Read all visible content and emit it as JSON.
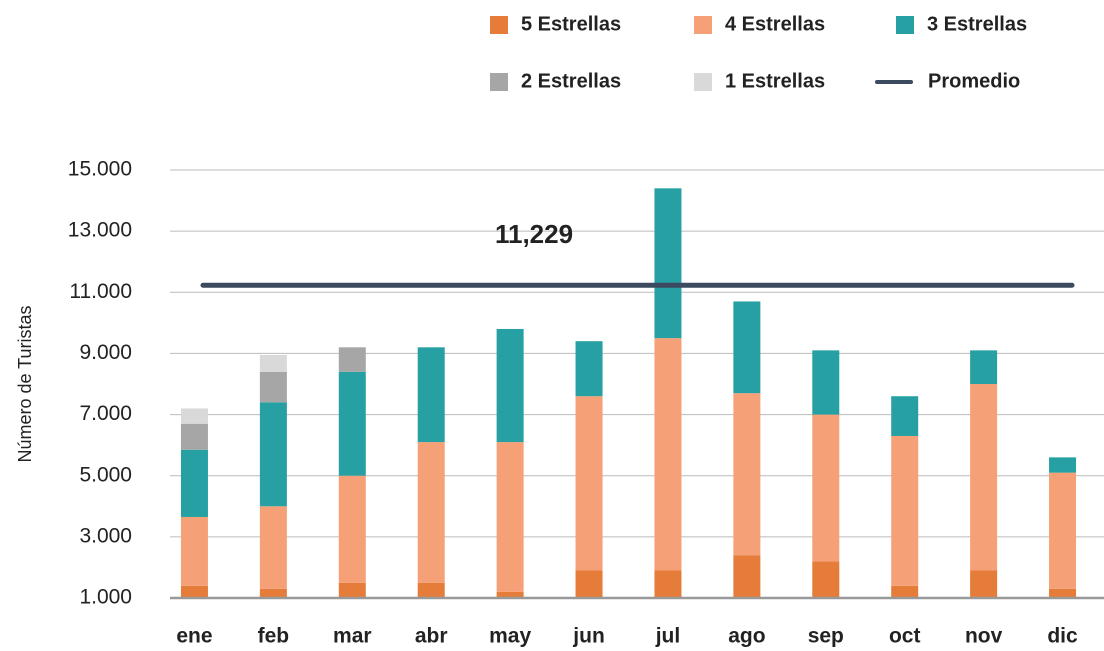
{
  "chart_data": {
    "type": "stacked_bar",
    "y_axis_label": "Número de Turistas",
    "categories": [
      "ene",
      "feb",
      "mar",
      "abr",
      "may",
      "jun",
      "jul",
      "ago",
      "sep",
      "oct",
      "nov",
      "dic"
    ],
    "series": [
      {
        "name": "5 Estrellas",
        "color": "#e57c3a",
        "values": [
          1400,
          1300,
          1500,
          1500,
          1200,
          1900,
          1900,
          2400,
          2200,
          1400,
          1900,
          1300
        ]
      },
      {
        "name": "4 Estrellas",
        "color": "#f6a077",
        "values": [
          2250,
          2700,
          3500,
          4600,
          4900,
          5700,
          7600,
          5300,
          4800,
          4900,
          6100,
          3800
        ]
      },
      {
        "name": "3 Estrellas",
        "color": "#26a0a2",
        "values": [
          2200,
          3400,
          3400,
          3100,
          3700,
          1800,
          4900,
          3000,
          2100,
          1300,
          1100,
          500
        ]
      },
      {
        "name": "2 Estrellas",
        "color": "#a6a6a6",
        "values": [
          850,
          1000,
          800,
          null,
          null,
          null,
          null,
          null,
          null,
          null,
          null,
          null
        ]
      },
      {
        "name": "1 Estrellas",
        "color": "#d9d9d9",
        "values": [
          500,
          550,
          null,
          null,
          null,
          null,
          null,
          null,
          null,
          null,
          null,
          null
        ]
      }
    ],
    "average": {
      "name": "Promedio",
      "color": "#3b4a5e",
      "value": 11229,
      "value_label": "11,229"
    },
    "ylim": [
      1000,
      15000
    ],
    "yticks": [
      {
        "value": 1000,
        "label": "1.000"
      },
      {
        "value": 3000,
        "label": "3.000"
      },
      {
        "value": 5000,
        "label": "5.000"
      },
      {
        "value": 7000,
        "label": "7.000"
      },
      {
        "value": 9000,
        "label": "9.000"
      },
      {
        "value": 11000,
        "label": "11.000"
      },
      {
        "value": 13000,
        "label": "13.000"
      },
      {
        "value": 15000,
        "label": "15.000"
      }
    ],
    "grid": true
  }
}
